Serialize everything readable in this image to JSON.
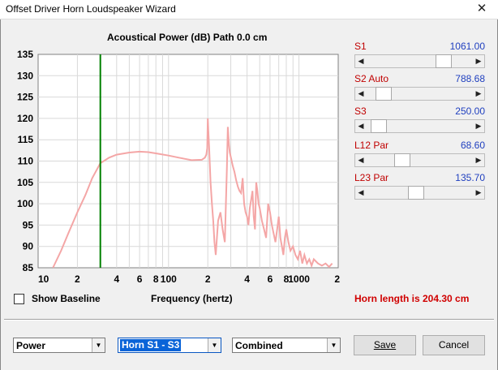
{
  "window": {
    "title": "Offset Driver Horn Loudspeaker Wizard",
    "close_glyph": "✕"
  },
  "chart": {
    "title": "Acoustical Power (dB)   Path 0.0 cm",
    "xlabel": "Frequency (hertz)"
  },
  "chart_data": {
    "type": "line",
    "title": "Acoustical Power (dB)   Path 0.0 cm",
    "xlabel": "Frequency (hertz)",
    "ylabel": "",
    "xscale": "log",
    "xlim": [
      10,
      2000
    ],
    "ylim": [
      85,
      135
    ],
    "yticks": [
      85,
      90,
      95,
      100,
      105,
      110,
      115,
      120,
      125,
      130,
      135
    ],
    "xtick_labels": [
      "10",
      "2",
      "4",
      "6",
      "8",
      "100",
      "2",
      "4",
      "6",
      "8",
      "1000",
      "2"
    ],
    "grid": true,
    "marker_line": {
      "x": 30,
      "color": "#008000"
    },
    "series": [
      {
        "color": "#f4a6a6",
        "x": [
          13,
          15,
          17,
          20,
          23,
          26,
          30,
          35,
          40,
          50,
          60,
          70,
          80,
          100,
          120,
          150,
          180,
          190,
          195,
          198,
          200,
          202,
          205,
          210,
          215,
          220,
          225,
          230,
          240,
          250,
          260,
          270,
          280,
          285,
          290,
          295,
          300,
          305,
          310,
          320,
          330,
          340,
          350,
          360,
          370,
          380,
          390,
          400,
          410,
          420,
          430,
          440,
          450,
          460,
          470,
          480,
          490,
          500,
          520,
          540,
          560,
          580,
          600,
          620,
          640,
          660,
          680,
          700,
          720,
          740,
          760,
          780,
          800,
          830,
          860,
          900,
          940,
          980,
          1020,
          1060,
          1100,
          1150,
          1200,
          1250,
          1300,
          1400,
          1500,
          1600,
          1700,
          1800
        ],
        "y": [
          85,
          89,
          93,
          98,
          102,
          106,
          109.5,
          110.8,
          111.5,
          112,
          112.2,
          112.1,
          111.8,
          111.3,
          110.8,
          110.2,
          110.3,
          110.8,
          111.5,
          113,
          120,
          117,
          113,
          105,
          100,
          96,
          91,
          88,
          96,
          98,
          94,
          91,
          108,
          118,
          114,
          112,
          111,
          110,
          109,
          107.5,
          105.5,
          104,
          103,
          102.5,
          106,
          100,
          98,
          97,
          95,
          99,
          101,
          103,
          97,
          94,
          105,
          103,
          100,
          99,
          96,
          94,
          92,
          100,
          98,
          95,
          93,
          91,
          94,
          97,
          92,
          90,
          88,
          92,
          94,
          91,
          89,
          90,
          88,
          87,
          89,
          86,
          88,
          86,
          87,
          85.5,
          87,
          86,
          85.5,
          86,
          85.2,
          86
        ]
      }
    ]
  },
  "sliders": [
    {
      "label": "S1",
      "value": "1061.00",
      "position": 0.75
    },
    {
      "label": "S2  Auto",
      "value": "788.68",
      "position": 0.1
    },
    {
      "label": "S3",
      "value": "250.00",
      "position": 0.04
    },
    {
      "label": "L12  Par",
      "value": "68.60",
      "position": 0.3
    },
    {
      "label": "L23  Par",
      "value": "135.70",
      "position": 0.45
    }
  ],
  "arrows": {
    "left": "◀",
    "right": "▶"
  },
  "checkbox": {
    "label": "Show Baseline",
    "checked": false
  },
  "status": {
    "horn_length": "Horn length is 204.30 cm"
  },
  "combos": {
    "plot_type": {
      "value": "Power"
    },
    "section": {
      "value": "Horn S1 - S3"
    },
    "mode": {
      "value": "Combined"
    },
    "dropdown_glyph": "▼"
  },
  "buttons": {
    "save": "Save",
    "cancel": "Cancel"
  }
}
